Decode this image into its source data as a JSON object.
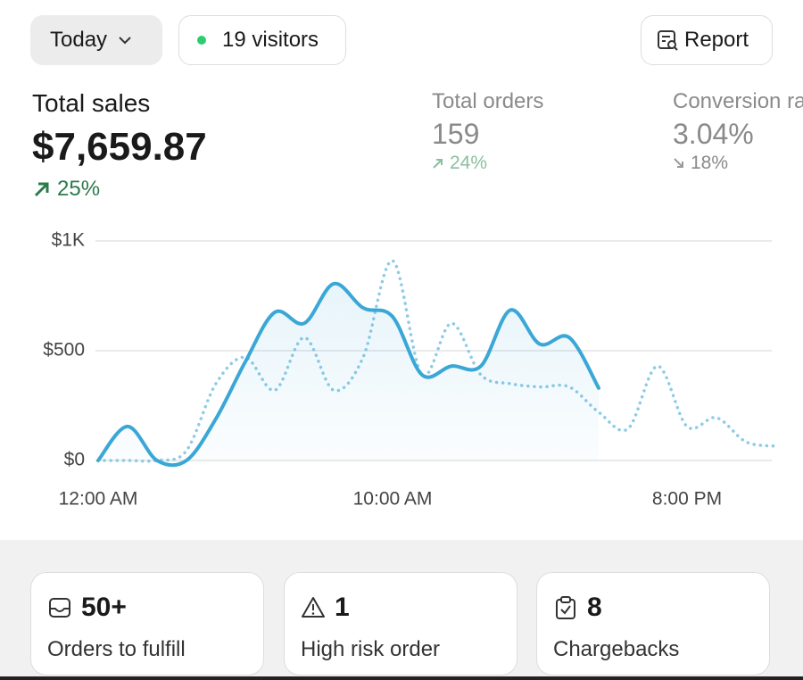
{
  "filters": {
    "period": "Today",
    "visitors": "19 visitors",
    "report": "Report"
  },
  "metrics": [
    {
      "label": "Total sales",
      "value": "$7,659.87",
      "change": "25%"
    },
    {
      "label": "Total orders",
      "value": "159",
      "change": "24%"
    },
    {
      "label": "Conversion rate",
      "value": "3.04%",
      "change": "18%"
    }
  ],
  "chart": {
    "type": "line",
    "categories": [
      "12:00 AM",
      null,
      null,
      null,
      null,
      null,
      null,
      null,
      null,
      null,
      "10:00 AM",
      null,
      null,
      null,
      null,
      null,
      null,
      null,
      null,
      null,
      "8:00 PM",
      null,
      null,
      null
    ],
    "series": [
      {
        "color": "#3aa7d6",
        "style": "solid",
        "values": [
          0,
          155,
          0,
          0,
          190,
          450,
          675,
          625,
          805,
          695,
          655,
          390,
          430,
          430,
          685,
          530,
          560,
          330,
          null,
          null,
          null,
          null,
          null,
          null
        ]
      },
      {
        "color": "#8ccbe6",
        "style": "dotted",
        "values": [
          0,
          0,
          0,
          45,
          350,
          470,
          320,
          560,
          320,
          470,
          910,
          390,
          625,
          390,
          350,
          335,
          335,
          220,
          145,
          430,
          155,
          195,
          85,
          65
        ]
      }
    ],
    "ylim": [
      0,
      1000
    ],
    "yticks": [
      {
        "value": 0,
        "label": "$0"
      },
      {
        "value": 500,
        "label": "$500"
      },
      {
        "value": 1000,
        "label": "$1K"
      }
    ],
    "grid": true
  },
  "cards": [
    {
      "value": "50+",
      "label": "Orders to fulfill"
    },
    {
      "value": "1",
      "label": "High risk order"
    },
    {
      "value": "8",
      "label": "Chargebacks"
    }
  ]
}
